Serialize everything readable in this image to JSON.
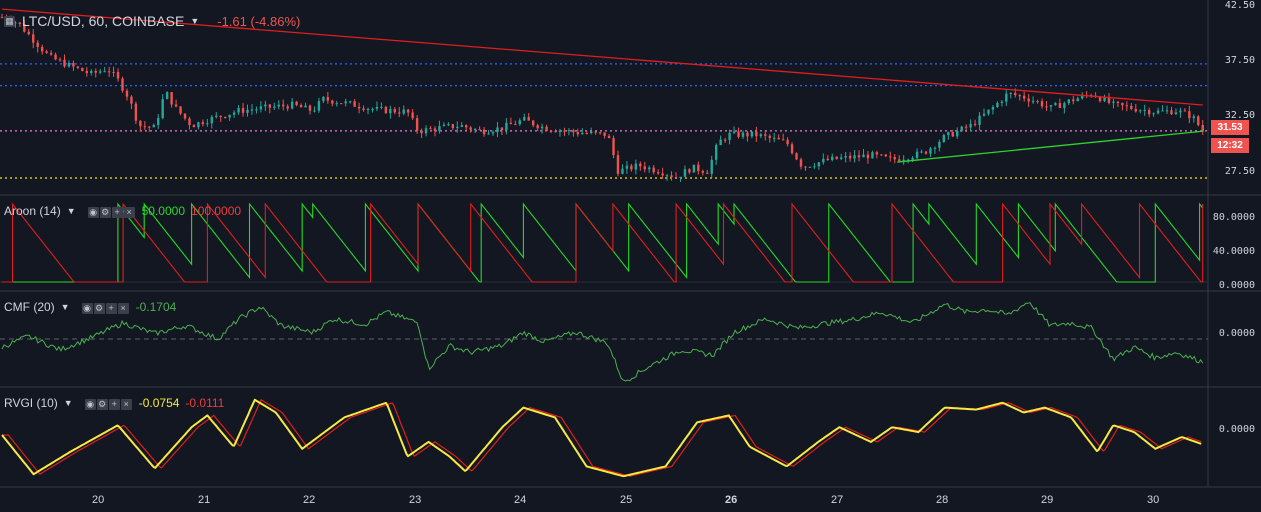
{
  "header": {
    "symbol": "LTC/USD, 60, COINBASE",
    "change": "-1.61 (-4.86%)"
  },
  "price_axis": [
    "42.50",
    "37.50",
    "32.50",
    "27.50"
  ],
  "price_badge": "31.53",
  "time_badge": "12:32",
  "x_axis": [
    "20",
    "21",
    "22",
    "23",
    "24",
    "25",
    "26",
    "27",
    "28",
    "29",
    "30"
  ],
  "aroon": {
    "label": "Aroon (14)",
    "up": "50.0000",
    "down": "100.0000",
    "axis": [
      "80.0000",
      "40.0000",
      "0.0000"
    ]
  },
  "cmf": {
    "label": "CMF (20)",
    "value": "-0.1704",
    "axis": [
      "0.0000"
    ]
  },
  "rvgi": {
    "label": "RVGI (10)",
    "value1": "-0.0754",
    "value2": "-0.0111",
    "axis": [
      "0.0000"
    ]
  },
  "colors": {
    "bull": "#26a69a",
    "bear": "#ef5350",
    "aroon_up": "#26d926",
    "aroon_down": "#e01e1e",
    "cmf": "#4caf50",
    "rvgi": "#f5e942",
    "rvgi_signal": "#e01e1e"
  },
  "chart_data": [
    {
      "type": "candlestick",
      "title": "LTC/USD, 60, COINBASE",
      "ylim": [
        26,
        43
      ],
      "x_range": [
        19.05,
        30.5
      ],
      "y_ticks": [
        42.5,
        37.5,
        32.5,
        27.5
      ],
      "last_price": 31.53,
      "close_path": [
        {
          "x": 19.05,
          "y": 41.5
        },
        {
          "x": 19.2,
          "y": 41.0
        },
        {
          "x": 19.35,
          "y": 39.5
        },
        {
          "x": 19.5,
          "y": 38.0
        },
        {
          "x": 19.7,
          "y": 37.2
        },
        {
          "x": 19.9,
          "y": 36.5
        },
        {
          "x": 20.05,
          "y": 37.0
        },
        {
          "x": 20.15,
          "y": 36.0
        },
        {
          "x": 20.25,
          "y": 34.5
        },
        {
          "x": 20.35,
          "y": 32.0
        },
        {
          "x": 20.5,
          "y": 31.8
        },
        {
          "x": 20.6,
          "y": 35.0
        },
        {
          "x": 20.7,
          "y": 33.5
        },
        {
          "x": 20.85,
          "y": 32.0
        },
        {
          "x": 21.0,
          "y": 32.5
        },
        {
          "x": 21.3,
          "y": 33.3
        },
        {
          "x": 21.5,
          "y": 33.5
        },
        {
          "x": 21.8,
          "y": 33.8
        },
        {
          "x": 22.0,
          "y": 33.3
        },
        {
          "x": 22.1,
          "y": 34.3
        },
        {
          "x": 22.3,
          "y": 34.0
        },
        {
          "x": 22.6,
          "y": 33.4
        },
        {
          "x": 22.9,
          "y": 33.2
        },
        {
          "x": 23.0,
          "y": 31.5
        },
        {
          "x": 23.2,
          "y": 31.8
        },
        {
          "x": 23.4,
          "y": 32.0
        },
        {
          "x": 23.6,
          "y": 31.5
        },
        {
          "x": 23.8,
          "y": 31.8
        },
        {
          "x": 24.0,
          "y": 32.5
        },
        {
          "x": 24.2,
          "y": 31.8
        },
        {
          "x": 24.5,
          "y": 31.4
        },
        {
          "x": 24.8,
          "y": 31.2
        },
        {
          "x": 24.9,
          "y": 28.0
        },
        {
          "x": 25.1,
          "y": 28.5
        },
        {
          "x": 25.3,
          "y": 28.0
        },
        {
          "x": 25.45,
          "y": 27.5
        },
        {
          "x": 25.6,
          "y": 28.3
        },
        {
          "x": 25.75,
          "y": 28.0
        },
        {
          "x": 25.85,
          "y": 30.5
        },
        {
          "x": 25.95,
          "y": 31.2
        },
        {
          "x": 26.2,
          "y": 31.2
        },
        {
          "x": 26.5,
          "y": 30.5
        },
        {
          "x": 26.65,
          "y": 28.4
        },
        {
          "x": 26.9,
          "y": 29.0
        },
        {
          "x": 27.1,
          "y": 29.2
        },
        {
          "x": 27.3,
          "y": 29.4
        },
        {
          "x": 27.5,
          "y": 29.0
        },
        {
          "x": 27.8,
          "y": 29.6
        },
        {
          "x": 28.0,
          "y": 31.0
        },
        {
          "x": 28.25,
          "y": 32.0
        },
        {
          "x": 28.45,
          "y": 33.5
        },
        {
          "x": 28.6,
          "y": 34.8
        },
        {
          "x": 28.75,
          "y": 34.5
        },
        {
          "x": 28.9,
          "y": 34.0
        },
        {
          "x": 29.0,
          "y": 33.5
        },
        {
          "x": 29.2,
          "y": 34.2
        },
        {
          "x": 29.4,
          "y": 34.8
        },
        {
          "x": 29.6,
          "y": 33.8
        },
        {
          "x": 29.8,
          "y": 33.5
        },
        {
          "x": 30.0,
          "y": 33.2
        },
        {
          "x": 30.2,
          "y": 33.3
        },
        {
          "x": 30.35,
          "y": 32.8
        },
        {
          "x": 30.45,
          "y": 31.53
        }
      ],
      "trendlines": [
        {
          "color": "red",
          "from": {
            "x": 19.05,
            "y": 42.2
          },
          "to": {
            "x": 30.45,
            "y": 33.8
          }
        },
        {
          "color": "green",
          "from": {
            "x": 27.55,
            "y": 28.8
          },
          "to": {
            "x": 30.45,
            "y": 31.5
          }
        }
      ],
      "horizontal_lines": [
        {
          "color": "blue",
          "style": "dotted",
          "y": 37.4
        },
        {
          "color": "blue",
          "style": "dotted",
          "y": 35.5
        },
        {
          "color": "pink",
          "style": "dotted",
          "y": 31.53
        },
        {
          "color": "yellow",
          "style": "dotted",
          "y": 27.4
        }
      ]
    },
    {
      "type": "line",
      "title": "Aroon (14)",
      "ylim": [
        0,
        100
      ],
      "y_ticks": [
        80,
        40,
        0
      ],
      "series": [
        {
          "name": "up",
          "color": "green",
          "last": 50.0,
          "resets": [
            20.15,
            20.4,
            20.85,
            21.4,
            21.9,
            22.0,
            22.5,
            23.0,
            23.6,
            24.0,
            24.5,
            25.0,
            25.55,
            25.85,
            26.0,
            26.9,
            27.7,
            27.85,
            28.3,
            28.7,
            29.05,
            30.0,
            30.42
          ]
        },
        {
          "name": "down",
          "color": "red",
          "last": 100.0,
          "resets": [
            19.15,
            20.2,
            21.0,
            21.55,
            22.55,
            23.0,
            23.5,
            24.5,
            24.85,
            25.45,
            25.9,
            26.55,
            27.5,
            28.55,
            29.0,
            29.3,
            29.85,
            30.45
          ]
        }
      ]
    },
    {
      "type": "line",
      "title": "CMF (20)",
      "ylim": [
        -0.35,
        0.35
      ],
      "last_value": -0.1704,
      "y_ticks": [
        0
      ],
      "x": [
        19.05,
        19.3,
        19.6,
        19.9,
        20.2,
        20.5,
        20.8,
        21.1,
        21.3,
        21.5,
        21.7,
        22.0,
        22.2,
        22.5,
        22.7,
        23.0,
        23.1,
        23.3,
        23.5,
        23.8,
        24.0,
        24.2,
        24.5,
        24.8,
        24.95,
        25.2,
        25.5,
        25.8,
        26.0,
        26.3,
        26.6,
        26.9,
        27.1,
        27.4,
        27.7,
        28.0,
        28.2,
        28.4,
        28.6,
        28.8,
        29.0,
        29.2,
        29.4,
        29.6,
        29.8,
        30.0,
        30.2,
        30.45
      ],
      "values": [
        -0.06,
        0.02,
        -0.08,
        0.01,
        0.12,
        0.04,
        0.1,
        0.0,
        0.15,
        0.24,
        0.1,
        0.05,
        0.15,
        0.11,
        0.2,
        0.12,
        -0.22,
        -0.05,
        -0.1,
        -0.05,
        0.05,
        -0.02,
        0.05,
        -0.03,
        -0.32,
        -0.2,
        -0.08,
        -0.12,
        0.05,
        0.15,
        0.08,
        0.12,
        0.14,
        0.2,
        0.12,
        0.26,
        0.2,
        0.22,
        0.18,
        0.28,
        0.1,
        0.12,
        0.08,
        -0.15,
        -0.06,
        -0.14,
        -0.1,
        -0.17
      ]
    },
    {
      "type": "line",
      "title": "RVGI (10)",
      "ylim": [
        -0.5,
        0.5
      ],
      "y_ticks": [
        0
      ],
      "series": [
        {
          "name": "rvgi",
          "color": "yellow",
          "last": -0.0754,
          "x": [
            19.05,
            19.35,
            19.7,
            20.15,
            20.5,
            20.85,
            21.0,
            21.25,
            21.45,
            21.65,
            21.9,
            22.3,
            22.7,
            22.9,
            23.1,
            23.3,
            23.45,
            23.8,
            24.0,
            24.3,
            24.6,
            24.95,
            25.35,
            25.65,
            25.95,
            26.15,
            26.5,
            26.8,
            27.0,
            27.3,
            27.5,
            27.75,
            28.0,
            28.3,
            28.55,
            28.75,
            28.95,
            29.2,
            29.45,
            29.6,
            29.8,
            30.0,
            30.25,
            30.45
          ],
          "values": [
            0.02,
            -0.38,
            -0.15,
            0.12,
            -0.32,
            0.1,
            0.22,
            -0.1,
            0.38,
            0.25,
            -0.12,
            0.2,
            0.35,
            -0.2,
            -0.05,
            -0.2,
            -0.35,
            0.1,
            0.3,
            0.2,
            -0.3,
            -0.4,
            -0.3,
            0.15,
            0.22,
            -0.1,
            -0.3,
            -0.05,
            0.1,
            -0.05,
            0.1,
            0.05,
            0.3,
            0.28,
            0.35,
            0.25,
            0.3,
            0.2,
            -0.15,
            0.12,
            0.05,
            -0.12,
            0.0,
            -0.0754
          ]
        },
        {
          "name": "signal",
          "color": "red",
          "last": -0.0111
        }
      ]
    }
  ]
}
